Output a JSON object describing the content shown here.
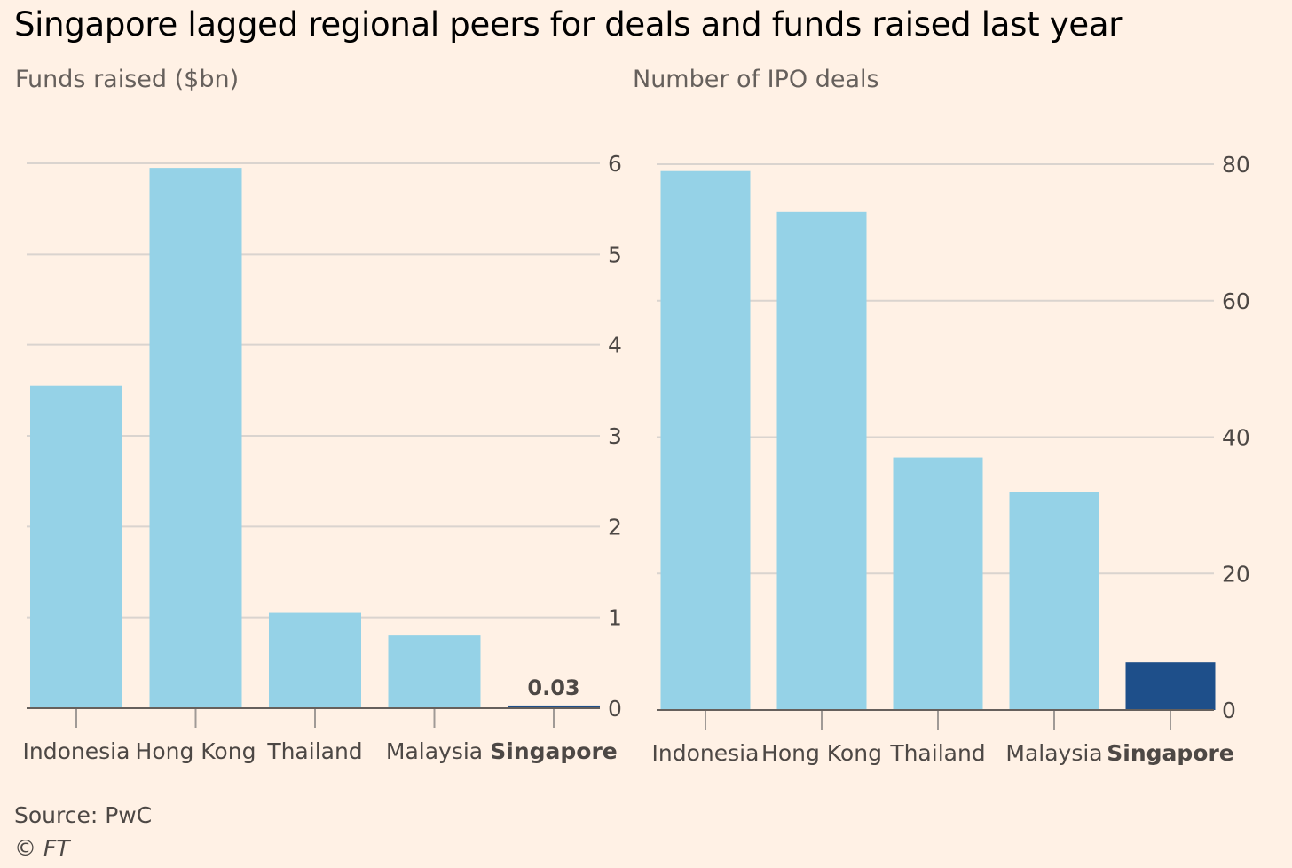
{
  "title": "Singapore lagged regional peers for deals and funds raised last year",
  "source": "Source: PwC",
  "credit": "© FT",
  "colors": {
    "background": "#fff1e5",
    "bar": "#95d2e7",
    "highlight_bar": "#1e4f8a",
    "gridline": "#dad4cf"
  },
  "chart_data": [
    {
      "type": "bar",
      "title": "Funds raised ($bn)",
      "categories": [
        "Indonesia",
        "Hong Kong",
        "Thailand",
        "Malaysia",
        "Singapore"
      ],
      "values": [
        3.55,
        5.95,
        1.05,
        0.8,
        0.03
      ],
      "highlight": "Singapore",
      "data_labels": [
        {
          "category": "Singapore",
          "text": "0.03"
        }
      ],
      "ylim": [
        0,
        6
      ],
      "yticks": [
        0,
        1,
        2,
        3,
        4,
        5,
        6
      ],
      "y_axis_side": "right",
      "grid": true,
      "legend": "none"
    },
    {
      "type": "bar",
      "title": "Number of IPO deals",
      "categories": [
        "Indonesia",
        "Hong Kong",
        "Thailand",
        "Malaysia",
        "Singapore"
      ],
      "values": [
        79,
        73,
        37,
        32,
        7
      ],
      "highlight": "Singapore",
      "data_labels": [],
      "ylim": [
        0,
        80
      ],
      "yticks": [
        0,
        20,
        40,
        60,
        80
      ],
      "y_axis_side": "right",
      "grid": true,
      "legend": "none"
    }
  ]
}
